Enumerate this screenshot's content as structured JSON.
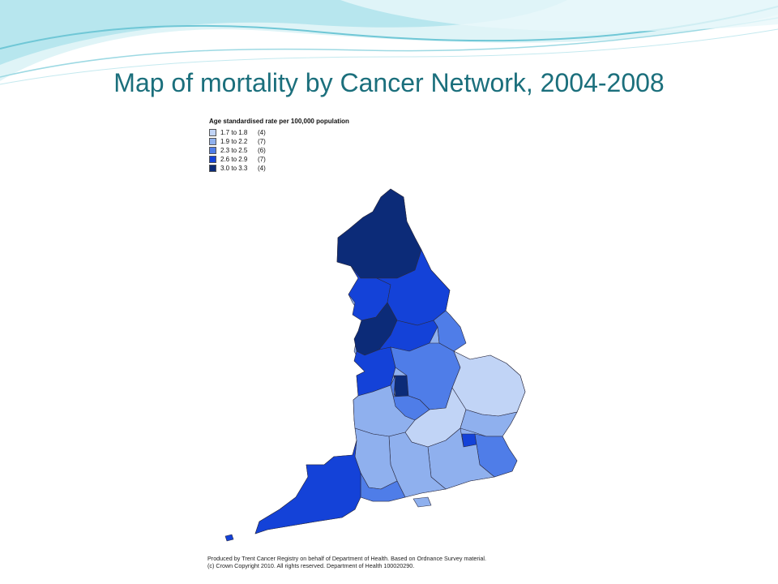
{
  "slide": {
    "title": "Map of mortality by Cancer Network, 2004-2008"
  },
  "map": {
    "legend": {
      "title": "Age standardised rate per 100,000 population",
      "items": [
        {
          "range": "1.7 to 1.8",
          "count": "(4)",
          "color": "#c1d4f6"
        },
        {
          "range": "1.9 to 2.2",
          "count": "(7)",
          "color": "#8fb0ee"
        },
        {
          "range": "2.3 to 2.5",
          "count": "(6)",
          "color": "#4f7de8"
        },
        {
          "range": "2.6 to 2.9",
          "count": "(7)",
          "color": "#1442d8"
        },
        {
          "range": "3.0 to 3.3",
          "count": "(4)",
          "color": "#0c2b78"
        }
      ]
    },
    "credit_line1": "Produced by Trent Cancer Registry on behalf of Department of Health. Based on Ordnance Survey material.",
    "credit_line2": "(c) Crown Copyright 2010. All rights reserved. Department of Health 100020290."
  },
  "colors": {
    "title": "#1b6f7c",
    "swoosh_light": "#cdeef2",
    "swoosh_mid": "#7fd0dc"
  }
}
